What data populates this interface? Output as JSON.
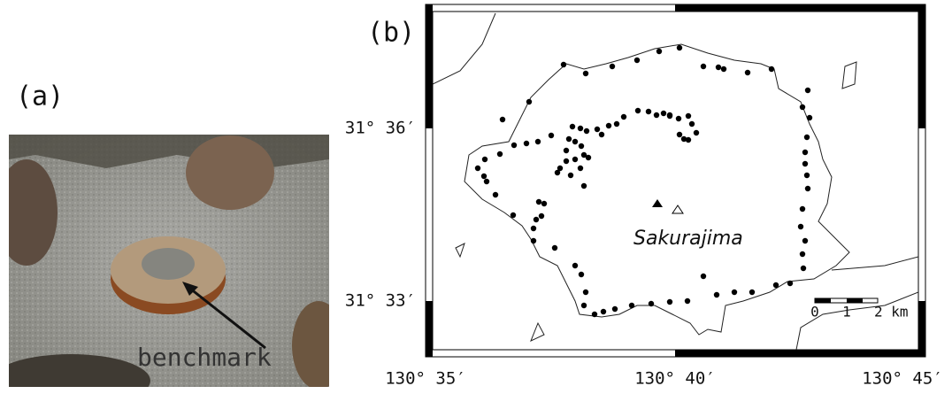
{
  "panel_a": {
    "label": "(a)",
    "annotation": "benchmark"
  },
  "panel_b": {
    "label": "(b)",
    "place": "Sakurajima",
    "lat_labels": [
      "31° 36′",
      "31° 33′"
    ],
    "lon_labels": [
      "130° 35′",
      "130° 40′",
      "130° 45′"
    ],
    "scale_labels": [
      "0",
      "1",
      "2 km"
    ]
  }
}
